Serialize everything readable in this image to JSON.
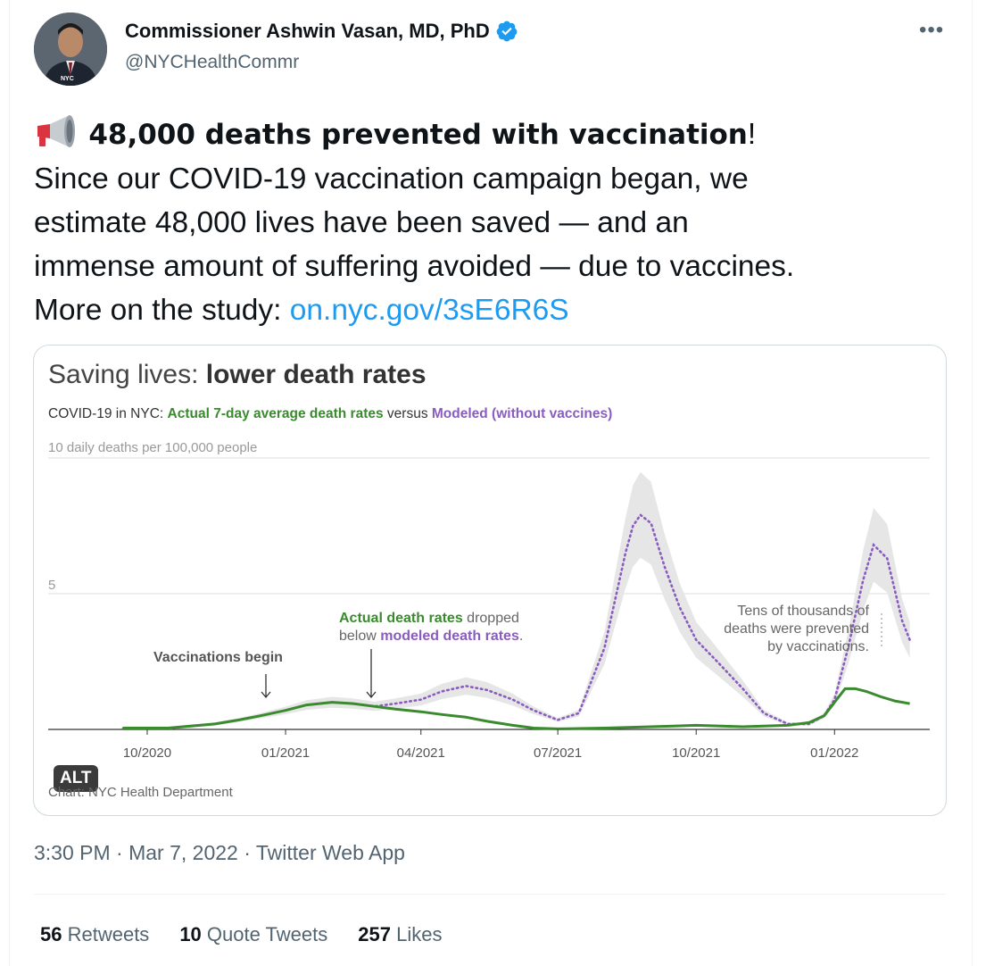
{
  "author": {
    "name": "Commissioner Ashwin Vasan, MD, PhD",
    "handle": "@NYCHealthCommr",
    "avatar_badge": "NYC",
    "verified_icon": "verified-badge-icon",
    "more_icon": "more-options-icon"
  },
  "tweet": {
    "headline": "48,000 deaths prevented with vaccination",
    "headline_suffix": "!",
    "line2": "Since our COVID-19 vaccination campaign began, we",
    "line3": "estimate 48,000 lives have been saved — and an",
    "line4": "immense amount of suffering avoided — due to vaccines.",
    "line5_prefix": "More on the study: ",
    "link": "on.nyc.gov/3sE6R6S",
    "emoji_icon": "megaphone-icon"
  },
  "media": {
    "title_light": "Saving lives: ",
    "title_bold": "lower death rates",
    "subtitle_prefix": "COVID-19 in NYC: ",
    "subtitle_actual": "Actual 7-day average death rates",
    "subtitle_mid": " versus ",
    "subtitle_modeled": "Modeled (without vaccines)",
    "alt_label": "ALT",
    "credit": "Chart: NYC Health Department",
    "colors": {
      "actual": "#3a8a2e",
      "modeled": "#8a5cc0",
      "band": "#e6e6e6"
    }
  },
  "chart_data": {
    "type": "line",
    "title": "Saving lives: lower death rates",
    "ylabel": "10 daily deaths per 100,000 people",
    "ylim": [
      0,
      10
    ],
    "y_ticks": [
      "5"
    ],
    "x_ticks": [
      "10/2020",
      "01/2021",
      "04/2021",
      "07/2021",
      "10/2021",
      "01/2022"
    ],
    "x_range": [
      "2020-09-15",
      "2022-02-25"
    ],
    "grid": true,
    "annotations": [
      {
        "text": "Vaccinations begin",
        "x": "2020-12-14"
      },
      {
        "text_1": "Actual death rates",
        "text_2": " dropped",
        "text_3": "below ",
        "text_4": "modeled death rates",
        "text_5": ".",
        "x": "2021-02-20"
      },
      {
        "text": "Tens of thousands of deaths were prevented by vaccinations.",
        "line_1": "Tens of thousands of",
        "line_2": "deaths were prevented",
        "line_3": "by vaccinations."
      }
    ],
    "series": [
      {
        "name": "Actual 7-day average death rates",
        "x": [
          "2020-09-15",
          "2020-10-15",
          "2020-11-15",
          "2020-12-01",
          "2020-12-15",
          "2021-01-01",
          "2021-01-15",
          "2021-02-01",
          "2021-02-15",
          "2021-03-01",
          "2021-03-15",
          "2021-04-01",
          "2021-04-15",
          "2021-05-01",
          "2021-05-15",
          "2021-06-01",
          "2021-06-15",
          "2021-07-01",
          "2021-08-01",
          "2021-09-01",
          "2021-10-01",
          "2021-11-01",
          "2021-12-01",
          "2021-12-15",
          "2021-12-25",
          "2022-01-01",
          "2022-01-08",
          "2022-01-15",
          "2022-01-22",
          "2022-02-01",
          "2022-02-10",
          "2022-02-20"
        ],
        "values": [
          0.05,
          0.05,
          0.2,
          0.35,
          0.5,
          0.7,
          0.9,
          1.0,
          0.95,
          0.85,
          0.75,
          0.65,
          0.55,
          0.45,
          0.3,
          0.15,
          0.05,
          0.02,
          0.05,
          0.1,
          0.15,
          0.1,
          0.15,
          0.25,
          0.5,
          1.0,
          1.5,
          1.5,
          1.4,
          1.2,
          1.05,
          0.95
        ]
      },
      {
        "name": "Modeled (without vaccines)",
        "x": [
          "2020-09-15",
          "2020-10-15",
          "2020-11-15",
          "2020-12-01",
          "2020-12-15",
          "2021-01-01",
          "2021-01-15",
          "2021-02-01",
          "2021-02-15",
          "2021-03-01",
          "2021-03-15",
          "2021-04-01",
          "2021-04-15",
          "2021-05-01",
          "2021-05-15",
          "2021-06-01",
          "2021-06-15",
          "2021-07-01",
          "2021-07-15",
          "2021-08-01",
          "2021-08-15",
          "2021-08-20",
          "2021-08-25",
          "2021-09-01",
          "2021-09-10",
          "2021-09-20",
          "2021-10-01",
          "2021-10-15",
          "2021-11-01",
          "2021-11-15",
          "2021-12-01",
          "2021-12-15",
          "2021-12-25",
          "2022-01-01",
          "2022-01-10",
          "2022-01-20",
          "2022-01-27",
          "2022-02-05",
          "2022-02-15",
          "2022-02-20"
        ],
        "values": [
          0.05,
          0.05,
          0.2,
          0.35,
          0.5,
          0.7,
          0.9,
          1.0,
          0.95,
          0.85,
          0.95,
          1.1,
          1.4,
          1.6,
          1.45,
          1.1,
          0.7,
          0.35,
          0.6,
          3.0,
          6.5,
          7.5,
          7.9,
          7.6,
          6.0,
          4.5,
          3.3,
          2.5,
          1.5,
          0.6,
          0.2,
          0.2,
          0.5,
          1.1,
          3.0,
          5.5,
          6.8,
          6.3,
          4.0,
          3.3
        ]
      }
    ]
  },
  "meta": {
    "time": "3:30 PM",
    "sep1": " · ",
    "date": "Mar 7, 2022",
    "sep2": " · ",
    "via": "Twitter Web App"
  },
  "stats": {
    "retweets_count": "56",
    "retweets_label": " Retweets",
    "quotes_count": "10",
    "quotes_label": " Quote Tweets",
    "likes_count": "257",
    "likes_label": " Likes"
  }
}
